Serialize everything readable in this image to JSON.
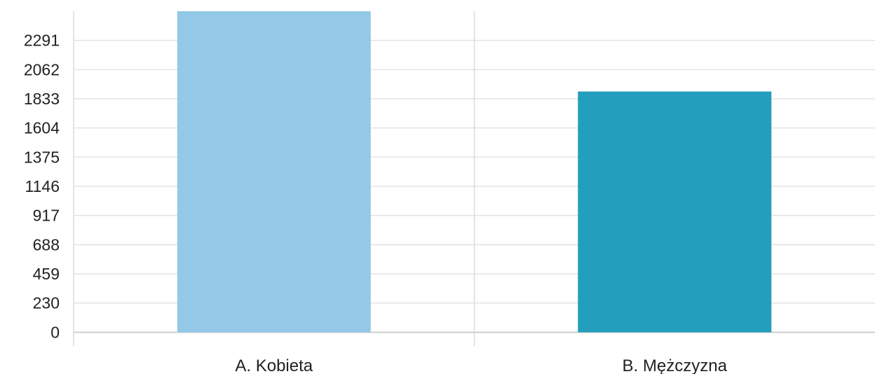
{
  "chart_data": {
    "type": "bar",
    "title": "",
    "xlabel": "",
    "ylabel": "",
    "categories": [
      "A. Kobieta",
      "B. Mężczyzna"
    ],
    "values": [
      2520,
      1890
    ],
    "bar_colors": [
      "#93c9e6",
      "#239fbd"
    ],
    "y_ticks": [
      0,
      230,
      459,
      688,
      917,
      1146,
      1375,
      1604,
      1833,
      2062,
      2291
    ],
    "ylim": [
      0,
      2520
    ],
    "grid": true,
    "legend": "none"
  }
}
